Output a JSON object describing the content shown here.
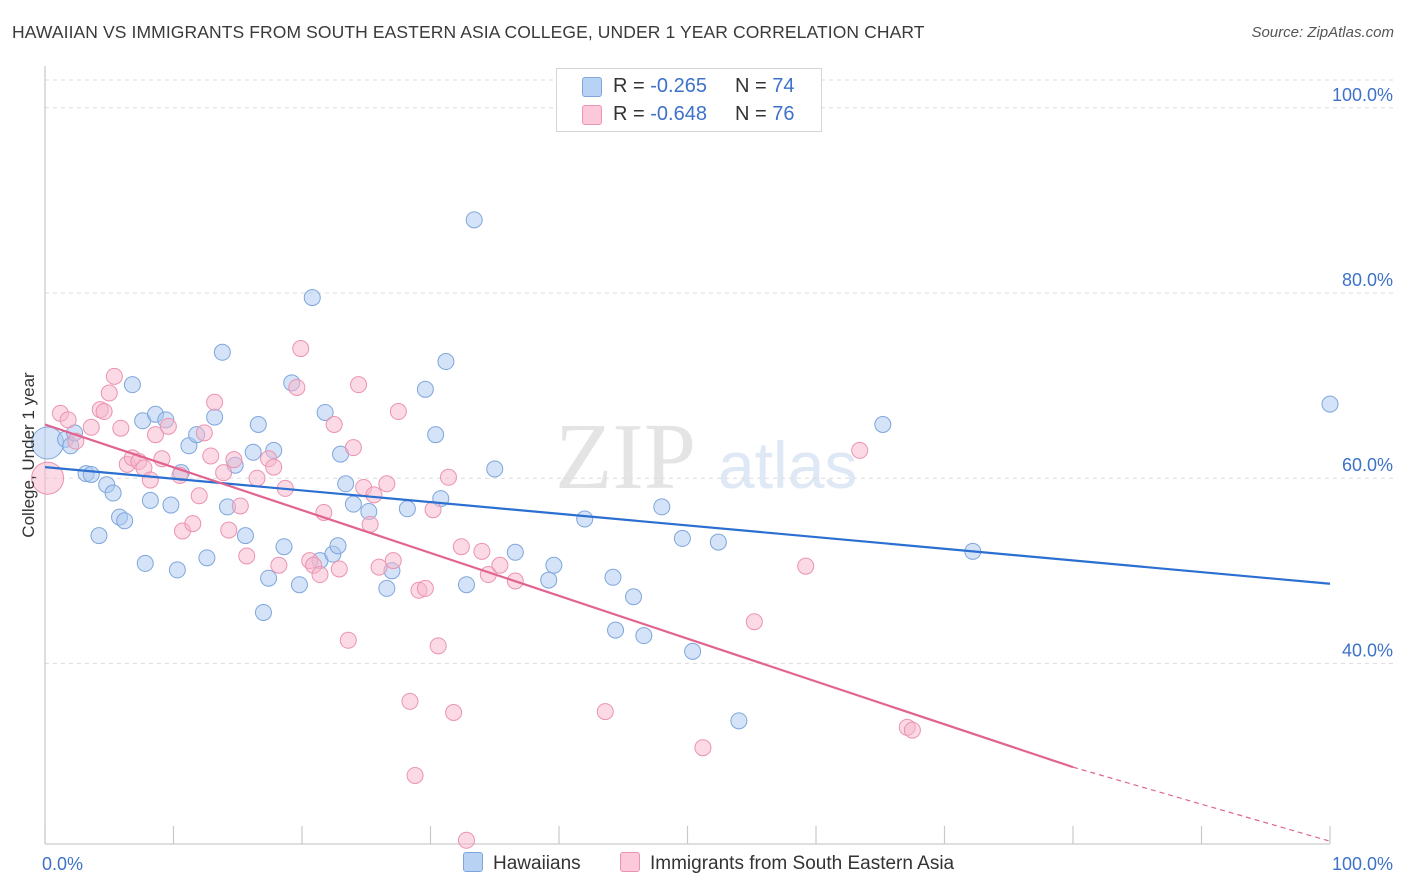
{
  "header": {
    "title": "HAWAIIAN VS IMMIGRANTS FROM SOUTH EASTERN ASIA COLLEGE, UNDER 1 YEAR CORRELATION CHART",
    "source": "Source: ZipAtlas.com"
  },
  "watermark": {
    "zip": "ZIP",
    "atlas": "atlas"
  },
  "legend": {
    "rows": [
      {
        "r_label": "R =",
        "r_value": "-0.265",
        "n_label": "N =",
        "n_value": "74"
      },
      {
        "r_label": "R =",
        "r_value": "-0.648",
        "n_label": "N =",
        "n_value": "76"
      }
    ]
  },
  "bottom_legend": {
    "hawaiians": "Hawaiians",
    "immigrants": "Immigrants from South Eastern Asia"
  },
  "chart_data": {
    "type": "scatter",
    "title": "HAWAIIAN VS IMMIGRANTS FROM SOUTH EASTERN ASIA COLLEGE, UNDER 1 YEAR CORRELATION CHART",
    "ylabel": "College, Under 1 year",
    "xlabel": "",
    "x_tick_labels": [
      "0.0%",
      "100.0%"
    ],
    "y_tick_labels": [
      "40.0%",
      "60.0%",
      "80.0%",
      "100.0%"
    ],
    "y_ticks": [
      40,
      60,
      80,
      100
    ],
    "xlim": [
      0,
      100
    ],
    "ylim": [
      20.5,
      103
    ],
    "grid": true,
    "legend_placement": "top-center",
    "colors": {
      "hawaiians_fill": "#a9c8f0",
      "hawaiians_stroke": "#7fa6dc",
      "hawaiians_line": "#2b6fd1",
      "immigrants_fill": "#f7b6cb",
      "immigrants_stroke": "#eb93b1",
      "immigrants_line": "#e0648f",
      "tick_label": "#3d72c9"
    },
    "series": [
      {
        "name": "Hawaiians",
        "r": -0.265,
        "n": 74,
        "trend": {
          "x": [
            0,
            100
          ],
          "y": [
            61.2,
            48.6
          ]
        },
        "points": [
          [
            0.2,
            63.8
          ],
          [
            1.6,
            64.2
          ],
          [
            2.0,
            63.5
          ],
          [
            2.3,
            64.9
          ],
          [
            3.2,
            60.5
          ],
          [
            3.6,
            60.4
          ],
          [
            4.2,
            53.8
          ],
          [
            4.8,
            59.3
          ],
          [
            5.3,
            58.4
          ],
          [
            5.8,
            55.8
          ],
          [
            6.2,
            55.4
          ],
          [
            6.8,
            70.1
          ],
          [
            7.6,
            66.2
          ],
          [
            7.8,
            50.8
          ],
          [
            8.2,
            57.6
          ],
          [
            8.6,
            66.9
          ],
          [
            9.4,
            66.3
          ],
          [
            9.8,
            57.1
          ],
          [
            10.3,
            50.1
          ],
          [
            10.6,
            60.6
          ],
          [
            11.2,
            63.5
          ],
          [
            11.8,
            64.7
          ],
          [
            12.6,
            51.4
          ],
          [
            13.2,
            66.6
          ],
          [
            13.8,
            73.6
          ],
          [
            14.2,
            56.9
          ],
          [
            14.8,
            61.4
          ],
          [
            15.6,
            53.8
          ],
          [
            16.2,
            62.8
          ],
          [
            16.6,
            65.8
          ],
          [
            17.0,
            45.5
          ],
          [
            17.4,
            49.2
          ],
          [
            17.8,
            63.0
          ],
          [
            18.6,
            52.6
          ],
          [
            19.2,
            70.3
          ],
          [
            19.8,
            48.5
          ],
          [
            20.8,
            79.5
          ],
          [
            21.4,
            51.1
          ],
          [
            21.8,
            67.1
          ],
          [
            22.4,
            51.8
          ],
          [
            22.8,
            52.7
          ],
          [
            23.0,
            62.6
          ],
          [
            23.4,
            59.4
          ],
          [
            24.0,
            57.2
          ],
          [
            25.2,
            56.4
          ],
          [
            26.6,
            48.1
          ],
          [
            27.0,
            50.0
          ],
          [
            28.2,
            56.7
          ],
          [
            29.6,
            69.6
          ],
          [
            30.4,
            64.7
          ],
          [
            30.8,
            57.8
          ],
          [
            31.2,
            72.6
          ],
          [
            32.8,
            48.5
          ],
          [
            33.4,
            87.9
          ],
          [
            35.0,
            61.0
          ],
          [
            36.6,
            52.0
          ],
          [
            39.2,
            49.0
          ],
          [
            39.6,
            50.6
          ],
          [
            42.0,
            55.6
          ],
          [
            44.2,
            49.3
          ],
          [
            44.4,
            43.6
          ],
          [
            45.8,
            47.2
          ],
          [
            46.6,
            43.0
          ],
          [
            48.0,
            56.9
          ],
          [
            49.6,
            53.5
          ],
          [
            50.4,
            41.3
          ],
          [
            52.4,
            53.1
          ],
          [
            54.0,
            33.8
          ],
          [
            65.2,
            65.8
          ],
          [
            72.2,
            52.1
          ],
          [
            100.0,
            68.0
          ]
        ]
      },
      {
        "name": "Immigrants from South Eastern Asia",
        "r": -0.648,
        "n": 76,
        "trend": {
          "x": [
            0,
            80
          ],
          "y": [
            65.8,
            28.8
          ]
        },
        "trend_dashed": {
          "x": [
            80,
            100
          ],
          "y": [
            28.8,
            20.8
          ]
        },
        "points": [
          [
            0.2,
            60.0
          ],
          [
            1.2,
            67.0
          ],
          [
            1.8,
            66.3
          ],
          [
            2.4,
            64.0
          ],
          [
            3.6,
            65.5
          ],
          [
            4.3,
            67.4
          ],
          [
            4.6,
            67.2
          ],
          [
            5.0,
            69.2
          ],
          [
            5.4,
            71.0
          ],
          [
            5.9,
            65.4
          ],
          [
            6.4,
            61.5
          ],
          [
            6.8,
            62.2
          ],
          [
            7.3,
            61.8
          ],
          [
            7.7,
            61.1
          ],
          [
            8.2,
            59.8
          ],
          [
            8.6,
            64.7
          ],
          [
            9.1,
            62.1
          ],
          [
            9.6,
            65.6
          ],
          [
            10.5,
            60.3
          ],
          [
            10.7,
            54.3
          ],
          [
            11.5,
            55.1
          ],
          [
            12.0,
            58.1
          ],
          [
            12.4,
            64.9
          ],
          [
            12.9,
            62.4
          ],
          [
            13.2,
            68.2
          ],
          [
            13.9,
            60.6
          ],
          [
            14.3,
            54.4
          ],
          [
            14.7,
            62.0
          ],
          [
            15.2,
            57.0
          ],
          [
            15.7,
            51.6
          ],
          [
            16.5,
            60.0
          ],
          [
            17.4,
            62.1
          ],
          [
            17.8,
            61.2
          ],
          [
            18.2,
            50.6
          ],
          [
            18.7,
            58.9
          ],
          [
            19.6,
            69.8
          ],
          [
            19.9,
            74.0
          ],
          [
            20.6,
            51.1
          ],
          [
            20.9,
            50.6
          ],
          [
            21.4,
            49.6
          ],
          [
            21.7,
            56.3
          ],
          [
            22.5,
            65.8
          ],
          [
            22.9,
            50.2
          ],
          [
            23.6,
            42.5
          ],
          [
            24.0,
            63.3
          ],
          [
            24.4,
            70.1
          ],
          [
            24.8,
            59.0
          ],
          [
            25.3,
            55.0
          ],
          [
            25.6,
            58.2
          ],
          [
            26.0,
            50.4
          ],
          [
            26.6,
            59.4
          ],
          [
            27.1,
            51.1
          ],
          [
            27.5,
            67.2
          ],
          [
            28.4,
            35.9
          ],
          [
            28.8,
            27.9
          ],
          [
            29.1,
            47.9
          ],
          [
            29.6,
            48.1
          ],
          [
            30.2,
            56.6
          ],
          [
            30.6,
            41.9
          ],
          [
            31.4,
            60.1
          ],
          [
            31.8,
            34.7
          ],
          [
            32.4,
            52.6
          ],
          [
            32.8,
            20.9
          ],
          [
            34.0,
            52.1
          ],
          [
            34.5,
            49.6
          ],
          [
            35.4,
            50.6
          ],
          [
            36.6,
            48.9
          ],
          [
            43.6,
            34.8
          ],
          [
            51.2,
            30.9
          ],
          [
            55.2,
            44.5
          ],
          [
            59.2,
            50.5
          ],
          [
            63.4,
            63.0
          ],
          [
            67.1,
            33.1
          ],
          [
            67.5,
            32.8
          ]
        ]
      }
    ]
  }
}
